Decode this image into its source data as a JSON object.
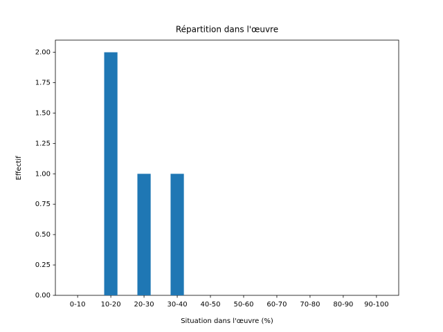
{
  "chart_data": {
    "type": "bar",
    "title": "Répartition dans l'œuvre",
    "x_label": "Situation dans l'œuvre (%)",
    "y_label": "Effectif",
    "categories": [
      "0-10",
      "10-20",
      "20-30",
      "30-40",
      "40-50",
      "50-60",
      "60-70",
      "70-80",
      "80-90",
      "90-100"
    ],
    "values": [
      0,
      2,
      1,
      1,
      0,
      0,
      0,
      0,
      0,
      0
    ],
    "color": "#1f77b4",
    "ylim": [
      0,
      2.1
    ],
    "yticks": [
      {
        "value": 0,
        "label": "0.00"
      },
      {
        "value": 0.25,
        "label": "0.25"
      },
      {
        "value": 0.5,
        "label": "0.50"
      },
      {
        "value": 0.75,
        "label": "0.75"
      },
      {
        "value": 1,
        "label": "1.00"
      },
      {
        "value": 1.25,
        "label": "1.25"
      },
      {
        "value": 1.5,
        "label": "1.50"
      },
      {
        "value": 1.75,
        "label": "1.75"
      },
      {
        "value": 2,
        "label": "2.00"
      }
    ],
    "grid": false
  }
}
